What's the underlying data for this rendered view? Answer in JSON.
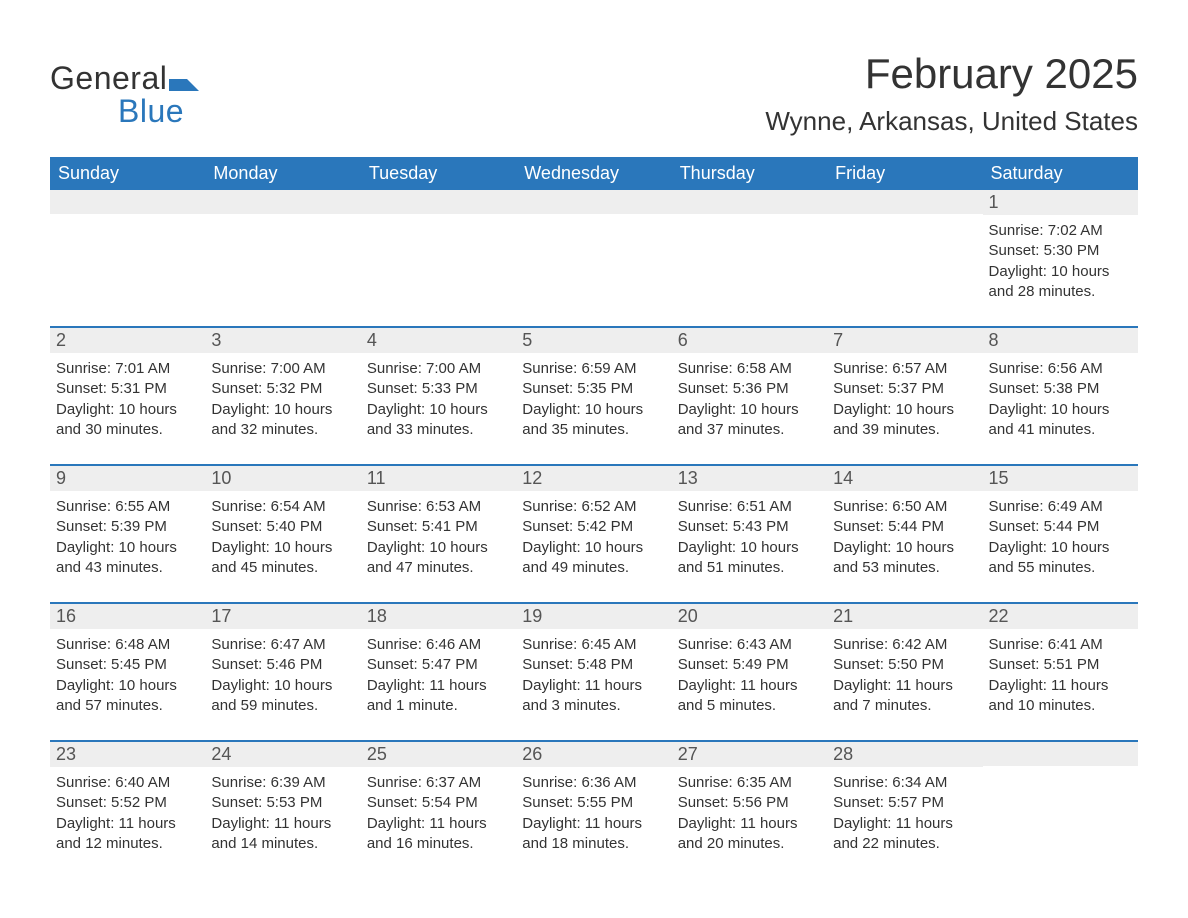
{
  "brand": {
    "word1": "General",
    "word2": "Blue",
    "accent": "#2a77bb"
  },
  "title": "February 2025",
  "location": "Wynne, Arkansas, United States",
  "weekdays": [
    "Sunday",
    "Monday",
    "Tuesday",
    "Wednesday",
    "Thursday",
    "Friday",
    "Saturday"
  ],
  "colors": {
    "header_bg": "#2a77bb",
    "header_text": "#ffffff",
    "row_separator": "#2a77bb",
    "daynum_bg": "#eeeeee",
    "text": "#333333",
    "background": "#ffffff"
  },
  "typography": {
    "title_fontsize": 42,
    "location_fontsize": 26,
    "weekday_fontsize": 18,
    "daynum_fontsize": 18,
    "body_fontsize": 15
  },
  "layout": {
    "columns": 7,
    "leading_blanks": 6,
    "trailing_blanks": 1
  },
  "days": [
    {
      "n": "1",
      "sunrise": "7:02 AM",
      "sunset": "5:30 PM",
      "daylight": "10 hours and 28 minutes."
    },
    {
      "n": "2",
      "sunrise": "7:01 AM",
      "sunset": "5:31 PM",
      "daylight": "10 hours and 30 minutes."
    },
    {
      "n": "3",
      "sunrise": "7:00 AM",
      "sunset": "5:32 PM",
      "daylight": "10 hours and 32 minutes."
    },
    {
      "n": "4",
      "sunrise": "7:00 AM",
      "sunset": "5:33 PM",
      "daylight": "10 hours and 33 minutes."
    },
    {
      "n": "5",
      "sunrise": "6:59 AM",
      "sunset": "5:35 PM",
      "daylight": "10 hours and 35 minutes."
    },
    {
      "n": "6",
      "sunrise": "6:58 AM",
      "sunset": "5:36 PM",
      "daylight": "10 hours and 37 minutes."
    },
    {
      "n": "7",
      "sunrise": "6:57 AM",
      "sunset": "5:37 PM",
      "daylight": "10 hours and 39 minutes."
    },
    {
      "n": "8",
      "sunrise": "6:56 AM",
      "sunset": "5:38 PM",
      "daylight": "10 hours and 41 minutes."
    },
    {
      "n": "9",
      "sunrise": "6:55 AM",
      "sunset": "5:39 PM",
      "daylight": "10 hours and 43 minutes."
    },
    {
      "n": "10",
      "sunrise": "6:54 AM",
      "sunset": "5:40 PM",
      "daylight": "10 hours and 45 minutes."
    },
    {
      "n": "11",
      "sunrise": "6:53 AM",
      "sunset": "5:41 PM",
      "daylight": "10 hours and 47 minutes."
    },
    {
      "n": "12",
      "sunrise": "6:52 AM",
      "sunset": "5:42 PM",
      "daylight": "10 hours and 49 minutes."
    },
    {
      "n": "13",
      "sunrise": "6:51 AM",
      "sunset": "5:43 PM",
      "daylight": "10 hours and 51 minutes."
    },
    {
      "n": "14",
      "sunrise": "6:50 AM",
      "sunset": "5:44 PM",
      "daylight": "10 hours and 53 minutes."
    },
    {
      "n": "15",
      "sunrise": "6:49 AM",
      "sunset": "5:44 PM",
      "daylight": "10 hours and 55 minutes."
    },
    {
      "n": "16",
      "sunrise": "6:48 AM",
      "sunset": "5:45 PM",
      "daylight": "10 hours and 57 minutes."
    },
    {
      "n": "17",
      "sunrise": "6:47 AM",
      "sunset": "5:46 PM",
      "daylight": "10 hours and 59 minutes."
    },
    {
      "n": "18",
      "sunrise": "6:46 AM",
      "sunset": "5:47 PM",
      "daylight": "11 hours and 1 minute."
    },
    {
      "n": "19",
      "sunrise": "6:45 AM",
      "sunset": "5:48 PM",
      "daylight": "11 hours and 3 minutes."
    },
    {
      "n": "20",
      "sunrise": "6:43 AM",
      "sunset": "5:49 PM",
      "daylight": "11 hours and 5 minutes."
    },
    {
      "n": "21",
      "sunrise": "6:42 AM",
      "sunset": "5:50 PM",
      "daylight": "11 hours and 7 minutes."
    },
    {
      "n": "22",
      "sunrise": "6:41 AM",
      "sunset": "5:51 PM",
      "daylight": "11 hours and 10 minutes."
    },
    {
      "n": "23",
      "sunrise": "6:40 AM",
      "sunset": "5:52 PM",
      "daylight": "11 hours and 12 minutes."
    },
    {
      "n": "24",
      "sunrise": "6:39 AM",
      "sunset": "5:53 PM",
      "daylight": "11 hours and 14 minutes."
    },
    {
      "n": "25",
      "sunrise": "6:37 AM",
      "sunset": "5:54 PM",
      "daylight": "11 hours and 16 minutes."
    },
    {
      "n": "26",
      "sunrise": "6:36 AM",
      "sunset": "5:55 PM",
      "daylight": "11 hours and 18 minutes."
    },
    {
      "n": "27",
      "sunrise": "6:35 AM",
      "sunset": "5:56 PM",
      "daylight": "11 hours and 20 minutes."
    },
    {
      "n": "28",
      "sunrise": "6:34 AM",
      "sunset": "5:57 PM",
      "daylight": "11 hours and 22 minutes."
    }
  ],
  "labels": {
    "sunrise": "Sunrise: ",
    "sunset": "Sunset: ",
    "daylight": "Daylight: "
  }
}
